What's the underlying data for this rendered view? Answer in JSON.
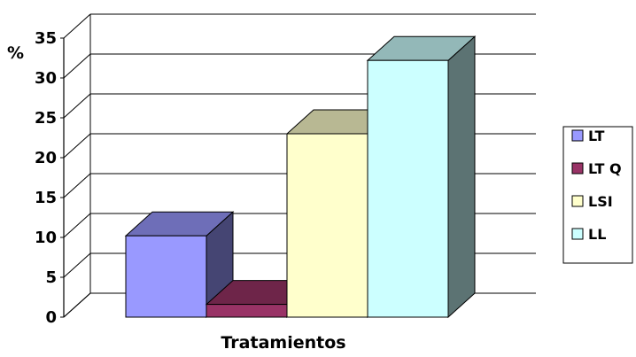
{
  "chart_data": {
    "type": "bar",
    "style": "3d-clustered-column",
    "ylabel": "%",
    "xlabel": "Tratamientos",
    "ylim": [
      0,
      35
    ],
    "yticks": [
      0,
      5,
      10,
      15,
      20,
      25,
      30,
      35
    ],
    "grid": true,
    "legend_position": "right",
    "series": [
      {
        "name": "LT",
        "value": 10.2,
        "color": "#9999ff"
      },
      {
        "name": "LT Q",
        "value": 1.6,
        "color": "#993366"
      },
      {
        "name": "LSI",
        "value": 23.0,
        "color": "#ffffcc"
      },
      {
        "name": "LL",
        "value": 32.2,
        "color": "#ccffff"
      }
    ]
  }
}
